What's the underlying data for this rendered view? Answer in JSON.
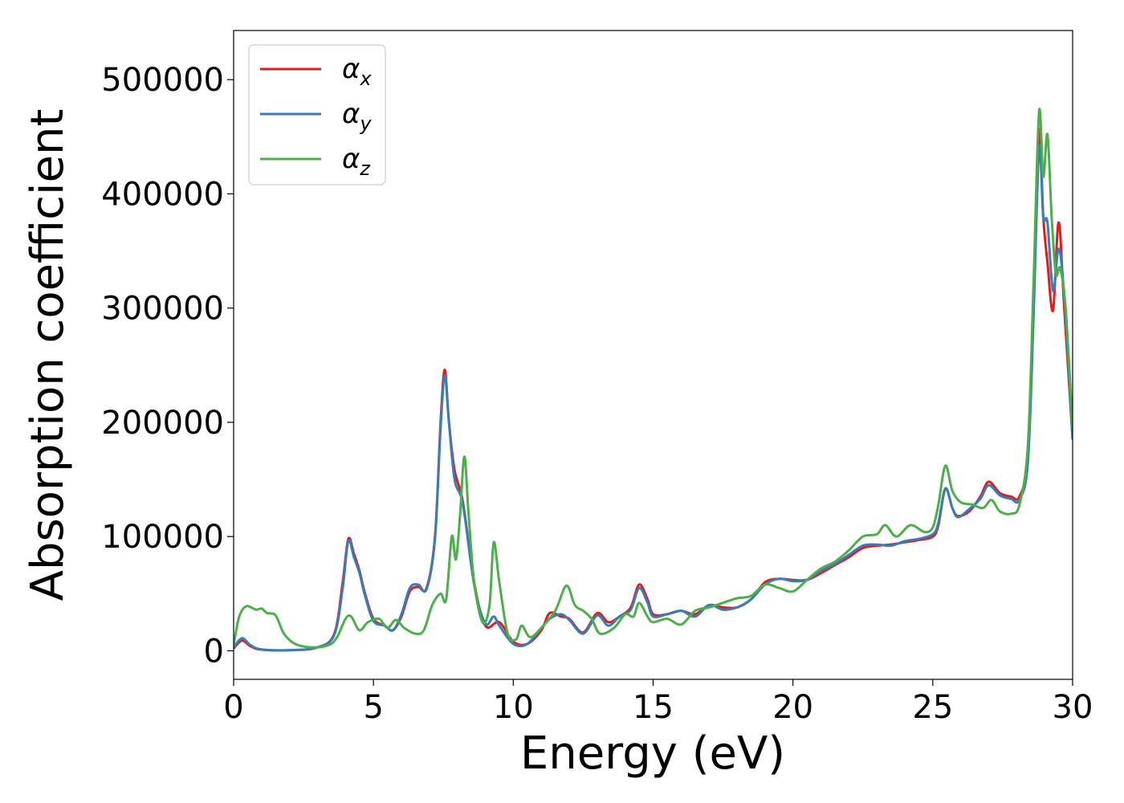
{
  "chart_data": {
    "type": "line",
    "title": "",
    "xlabel": "Energy (eV)",
    "ylabel": "Absorption coefficient",
    "xlim": [
      0,
      30
    ],
    "ylim": [
      -25000,
      543000
    ],
    "xticks": [
      0,
      5,
      10,
      15,
      20,
      25,
      30
    ],
    "xtick_labels": [
      "0",
      "5",
      "10",
      "15",
      "20",
      "25",
      "30"
    ],
    "yticks": [
      0,
      100000,
      200000,
      300000,
      400000,
      500000
    ],
    "ytick_labels": [
      "0",
      "100000",
      "200000",
      "300000",
      "400000",
      "500000"
    ],
    "grid": false,
    "legend_position": "top-left",
    "colors": {
      "x": "#e41a1c",
      "y": "#377eb8",
      "z": "#4daf4a"
    },
    "series": [
      {
        "key": "x",
        "name": "αx",
        "legend_base": "α",
        "legend_sub": "x",
        "color": "#e41a1c",
        "points": [
          [
            0,
            2000
          ],
          [
            0.3,
            9000
          ],
          [
            0.6,
            4000
          ],
          [
            1,
            1000
          ],
          [
            2,
            500
          ],
          [
            3,
            3000
          ],
          [
            3.6,
            15000
          ],
          [
            3.9,
            60000
          ],
          [
            4.1,
            98000
          ],
          [
            4.3,
            85000
          ],
          [
            4.5,
            70000
          ],
          [
            4.7,
            50000
          ],
          [
            5,
            28000
          ],
          [
            5.4,
            22000
          ],
          [
            5.7,
            18000
          ],
          [
            6,
            30000
          ],
          [
            6.3,
            52000
          ],
          [
            6.6,
            56000
          ],
          [
            6.9,
            55000
          ],
          [
            7.2,
            100000
          ],
          [
            7.4,
            200000
          ],
          [
            7.55,
            246000
          ],
          [
            7.7,
            200000
          ],
          [
            7.9,
            158000
          ],
          [
            8.2,
            130000
          ],
          [
            8.6,
            60000
          ],
          [
            9,
            22000
          ],
          [
            9.5,
            25000
          ],
          [
            10,
            8000
          ],
          [
            10.5,
            6000
          ],
          [
            11,
            18000
          ],
          [
            11.3,
            33000
          ],
          [
            11.7,
            30000
          ],
          [
            12,
            28000
          ],
          [
            12.5,
            16000
          ],
          [
            13,
            33000
          ],
          [
            13.4,
            25000
          ],
          [
            13.8,
            30000
          ],
          [
            14.2,
            38000
          ],
          [
            14.5,
            58000
          ],
          [
            14.8,
            45000
          ],
          [
            15,
            32000
          ],
          [
            15.5,
            32000
          ],
          [
            16,
            35000
          ],
          [
            16.5,
            32000
          ],
          [
            17,
            40000
          ],
          [
            17.5,
            38000
          ],
          [
            18,
            38000
          ],
          [
            18.5,
            45000
          ],
          [
            19,
            60000
          ],
          [
            19.5,
            63000
          ],
          [
            20,
            62000
          ],
          [
            20.5,
            62000
          ],
          [
            21,
            68000
          ],
          [
            21.5,
            75000
          ],
          [
            22,
            82000
          ],
          [
            22.5,
            90000
          ],
          [
            23,
            92000
          ],
          [
            23.5,
            93000
          ],
          [
            24,
            95000
          ],
          [
            24.5,
            97000
          ],
          [
            25,
            100000
          ],
          [
            25.2,
            110000
          ],
          [
            25.45,
            142000
          ],
          [
            25.7,
            125000
          ],
          [
            25.9,
            118000
          ],
          [
            26.3,
            122000
          ],
          [
            26.7,
            135000
          ],
          [
            27,
            148000
          ],
          [
            27.4,
            138000
          ],
          [
            27.8,
            135000
          ],
          [
            28.1,
            135000
          ],
          [
            28.4,
            170000
          ],
          [
            28.6,
            300000
          ],
          [
            28.8,
            455000
          ],
          [
            28.95,
            380000
          ],
          [
            29.1,
            340000
          ],
          [
            29.3,
            298000
          ],
          [
            29.5,
            375000
          ],
          [
            29.7,
            300000
          ],
          [
            30,
            185000
          ]
        ]
      },
      {
        "key": "y",
        "name": "αy",
        "legend_base": "α",
        "legend_sub": "y",
        "color": "#377eb8",
        "points": [
          [
            0,
            3000
          ],
          [
            0.3,
            11000
          ],
          [
            0.6,
            5000
          ],
          [
            1,
            1200
          ],
          [
            2,
            600
          ],
          [
            3,
            3000
          ],
          [
            3.6,
            14000
          ],
          [
            3.9,
            55000
          ],
          [
            4.1,
            96000
          ],
          [
            4.3,
            82000
          ],
          [
            4.5,
            68000
          ],
          [
            4.7,
            48000
          ],
          [
            5,
            26000
          ],
          [
            5.4,
            22000
          ],
          [
            5.7,
            18000
          ],
          [
            6,
            32000
          ],
          [
            6.3,
            55000
          ],
          [
            6.6,
            58000
          ],
          [
            6.9,
            54000
          ],
          [
            7.2,
            98000
          ],
          [
            7.4,
            195000
          ],
          [
            7.55,
            241000
          ],
          [
            7.7,
            200000
          ],
          [
            7.9,
            150000
          ],
          [
            8.2,
            128000
          ],
          [
            8.6,
            58000
          ],
          [
            9,
            24000
          ],
          [
            9.3,
            30000
          ],
          [
            9.5,
            22000
          ],
          [
            10,
            6000
          ],
          [
            10.5,
            6000
          ],
          [
            11,
            20000
          ],
          [
            11.3,
            28000
          ],
          [
            11.7,
            32000
          ],
          [
            12,
            27000
          ],
          [
            12.5,
            15000
          ],
          [
            13,
            31000
          ],
          [
            13.4,
            22000
          ],
          [
            13.8,
            30000
          ],
          [
            14.2,
            36000
          ],
          [
            14.5,
            55000
          ],
          [
            14.8,
            42000
          ],
          [
            15,
            30000
          ],
          [
            15.5,
            32000
          ],
          [
            16,
            35000
          ],
          [
            16.5,
            30000
          ],
          [
            17,
            40000
          ],
          [
            17.5,
            36000
          ],
          [
            18,
            38000
          ],
          [
            18.5,
            45000
          ],
          [
            19,
            58000
          ],
          [
            19.5,
            63000
          ],
          [
            20,
            61000
          ],
          [
            20.5,
            62000
          ],
          [
            21,
            70000
          ],
          [
            21.5,
            76000
          ],
          [
            22,
            84000
          ],
          [
            22.5,
            92000
          ],
          [
            23,
            93000
          ],
          [
            23.5,
            92000
          ],
          [
            24,
            96000
          ],
          [
            24.5,
            98000
          ],
          [
            25,
            102000
          ],
          [
            25.2,
            112000
          ],
          [
            25.45,
            142000
          ],
          [
            25.7,
            125000
          ],
          [
            25.9,
            117000
          ],
          [
            26.3,
            124000
          ],
          [
            26.7,
            133000
          ],
          [
            27,
            145000
          ],
          [
            27.4,
            136000
          ],
          [
            27.8,
            133000
          ],
          [
            28.1,
            132000
          ],
          [
            28.4,
            165000
          ],
          [
            28.6,
            290000
          ],
          [
            28.8,
            440000
          ],
          [
            28.95,
            380000
          ],
          [
            29.1,
            375000
          ],
          [
            29.3,
            315000
          ],
          [
            29.5,
            352000
          ],
          [
            29.7,
            310000
          ],
          [
            30,
            185000
          ]
        ]
      },
      {
        "key": "z",
        "name": "αz",
        "legend_base": "α",
        "legend_sub": "z",
        "color": "#4daf4a",
        "points": [
          [
            0,
            5000
          ],
          [
            0.2,
            30000
          ],
          [
            0.45,
            39000
          ],
          [
            0.8,
            36000
          ],
          [
            1,
            37000
          ],
          [
            1.2,
            33000
          ],
          [
            1.5,
            31000
          ],
          [
            1.8,
            15000
          ],
          [
            2.2,
            6000
          ],
          [
            2.8,
            3000
          ],
          [
            3.4,
            5000
          ],
          [
            3.7,
            12000
          ],
          [
            4,
            28000
          ],
          [
            4.2,
            30000
          ],
          [
            4.5,
            18000
          ],
          [
            4.8,
            25000
          ],
          [
            5.2,
            28000
          ],
          [
            5.5,
            20000
          ],
          [
            5.8,
            27000
          ],
          [
            6.1,
            20000
          ],
          [
            6.5,
            15000
          ],
          [
            6.8,
            18000
          ],
          [
            7.1,
            40000
          ],
          [
            7.4,
            50000
          ],
          [
            7.6,
            45000
          ],
          [
            7.8,
            100000
          ],
          [
            7.95,
            80000
          ],
          [
            8.1,
            120000
          ],
          [
            8.25,
            170000
          ],
          [
            8.4,
            120000
          ],
          [
            8.6,
            60000
          ],
          [
            8.9,
            25000
          ],
          [
            9.15,
            40000
          ],
          [
            9.3,
            95000
          ],
          [
            9.5,
            60000
          ],
          [
            9.8,
            15000
          ],
          [
            10.1,
            10000
          ],
          [
            10.3,
            22000
          ],
          [
            10.6,
            12000
          ],
          [
            11,
            20000
          ],
          [
            11.5,
            35000
          ],
          [
            11.9,
            57000
          ],
          [
            12.2,
            40000
          ],
          [
            12.5,
            35000
          ],
          [
            12.8,
            28000
          ],
          [
            13.1,
            15000
          ],
          [
            13.6,
            20000
          ],
          [
            14,
            32000
          ],
          [
            14.3,
            30000
          ],
          [
            14.5,
            42000
          ],
          [
            14.8,
            30000
          ],
          [
            15,
            25000
          ],
          [
            15.5,
            28000
          ],
          [
            16,
            23000
          ],
          [
            16.5,
            35000
          ],
          [
            17,
            38000
          ],
          [
            17.5,
            42000
          ],
          [
            18,
            46000
          ],
          [
            18.5,
            48000
          ],
          [
            19,
            58000
          ],
          [
            19.5,
            55000
          ],
          [
            20,
            52000
          ],
          [
            20.5,
            62000
          ],
          [
            21,
            72000
          ],
          [
            21.5,
            78000
          ],
          [
            22,
            88000
          ],
          [
            22.5,
            100000
          ],
          [
            23,
            102000
          ],
          [
            23.3,
            110000
          ],
          [
            23.7,
            100000
          ],
          [
            24.2,
            110000
          ],
          [
            24.7,
            104000
          ],
          [
            25,
            108000
          ],
          [
            25.2,
            128000
          ],
          [
            25.45,
            162000
          ],
          [
            25.7,
            140000
          ],
          [
            26,
            130000
          ],
          [
            26.4,
            128000
          ],
          [
            26.8,
            125000
          ],
          [
            27.1,
            132000
          ],
          [
            27.4,
            122000
          ],
          [
            27.8,
            120000
          ],
          [
            28.1,
            128000
          ],
          [
            28.4,
            180000
          ],
          [
            28.6,
            320000
          ],
          [
            28.8,
            472000
          ],
          [
            28.95,
            415000
          ],
          [
            29.1,
            452000
          ],
          [
            29.25,
            380000
          ],
          [
            29.4,
            330000
          ],
          [
            29.55,
            335000
          ],
          [
            29.75,
            300000
          ],
          [
            30,
            195000
          ]
        ]
      }
    ]
  }
}
